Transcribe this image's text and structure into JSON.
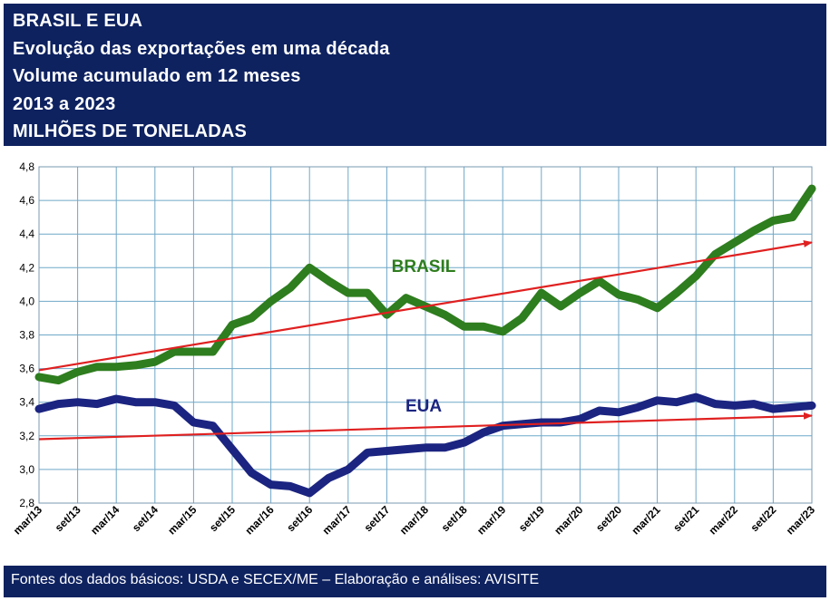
{
  "header": {
    "lines": [
      "BRASIL E EUA",
      "Evolução das exportações em uma década",
      "Volume acumulado em 12 meses",
      "2013 a 2023",
      "MILHÕES DE TONELADAS"
    ]
  },
  "footer": {
    "text": "Fontes dos dados básicos: USDA e SECEX/ME – Elaboração e análises: AVISITE"
  },
  "colors": {
    "header_bg": "#0e2260",
    "brasil": "#2e7d1e",
    "eua": "#1b2480",
    "trend": "#e02020",
    "grid": "#6fa8c8"
  },
  "chart_data": {
    "type": "line",
    "title": "",
    "xlabel": "",
    "ylabel": "",
    "ylim": [
      2.8,
      4.8
    ],
    "yticks": [
      "2,8",
      "3,0",
      "3,2",
      "3,4",
      "3,6",
      "3,8",
      "4,0",
      "4,2",
      "4,4",
      "4,6",
      "4,8"
    ],
    "grid": true,
    "legend": "inline labels",
    "x_range": [
      "mar/13",
      "mar/23"
    ],
    "categories": [
      "mar/13",
      "set/13",
      "mar/14",
      "set/14",
      "mar/15",
      "set/15",
      "mar/16",
      "set/16",
      "mar/17",
      "set/17",
      "mar/18",
      "set/18",
      "mar/19",
      "set/19",
      "mar/20",
      "set/20",
      "mar/21",
      "set/21",
      "mar/22",
      "set/22",
      "mar/23"
    ],
    "series": [
      {
        "name": "BRASIL",
        "x": [
          "mar/13",
          "jun/13",
          "set/13",
          "dez/13",
          "mar/14",
          "jun/14",
          "set/14",
          "dez/14",
          "mar/15",
          "jun/15",
          "set/15",
          "dez/15",
          "mar/16",
          "jun/16",
          "set/16",
          "dez/16",
          "mar/17",
          "jun/17",
          "set/17",
          "dez/17",
          "mar/18",
          "jun/18",
          "set/18",
          "dez/18",
          "mar/19",
          "jun/19",
          "set/19",
          "dez/19",
          "mar/20",
          "jun/20",
          "set/20",
          "dez/20",
          "mar/21",
          "jun/21",
          "set/21",
          "dez/21",
          "mar/22",
          "jun/22",
          "set/22",
          "dez/22",
          "mar/23"
        ],
        "values": [
          3.55,
          3.53,
          3.58,
          3.61,
          3.61,
          3.62,
          3.64,
          3.7,
          3.7,
          3.7,
          3.86,
          3.9,
          4.0,
          4.08,
          4.2,
          4.12,
          4.05,
          4.05,
          3.92,
          4.02,
          3.97,
          3.92,
          3.85,
          3.85,
          3.82,
          3.9,
          4.05,
          3.97,
          4.05,
          4.12,
          4.04,
          4.01,
          3.96,
          4.05,
          4.15,
          4.28,
          4.35,
          4.42,
          4.48,
          4.5,
          4.67
        ]
      },
      {
        "name": "EUA",
        "x": [
          "mar/13",
          "jun/13",
          "set/13",
          "dez/13",
          "mar/14",
          "jun/14",
          "set/14",
          "dez/14",
          "mar/15",
          "jun/15",
          "set/15",
          "dez/15",
          "mar/16",
          "jun/16",
          "set/16",
          "dez/16",
          "mar/17",
          "jun/17",
          "set/17",
          "dez/17",
          "mar/18",
          "jun/18",
          "set/18",
          "dez/18",
          "mar/19",
          "jun/19",
          "set/19",
          "dez/19",
          "mar/20",
          "jun/20",
          "set/20",
          "dez/20",
          "mar/21",
          "jun/21",
          "set/21",
          "dez/21",
          "mar/22",
          "jun/22",
          "set/22",
          "dez/22",
          "mar/23"
        ],
        "values": [
          3.36,
          3.39,
          3.4,
          3.39,
          3.42,
          3.4,
          3.4,
          3.38,
          3.28,
          3.26,
          3.12,
          2.98,
          2.91,
          2.9,
          2.86,
          2.95,
          3.0,
          3.1,
          3.11,
          3.12,
          3.13,
          3.13,
          3.16,
          3.22,
          3.26,
          3.27,
          3.28,
          3.28,
          3.3,
          3.35,
          3.34,
          3.37,
          3.41,
          3.4,
          3.43,
          3.39,
          3.38,
          3.39,
          3.36,
          3.37,
          3.38
        ]
      }
    ],
    "trendlines": [
      {
        "series": "BRASIL",
        "start": [
          "mar/13",
          3.59
        ],
        "end": [
          "mar/23",
          4.35
        ]
      },
      {
        "series": "EUA",
        "start": [
          "mar/13",
          3.18
        ],
        "end": [
          "mar/23",
          3.32
        ]
      }
    ],
    "labels": [
      {
        "text": "BRASIL",
        "series": "BRASIL"
      },
      {
        "text": "EUA",
        "series": "EUA"
      }
    ]
  }
}
